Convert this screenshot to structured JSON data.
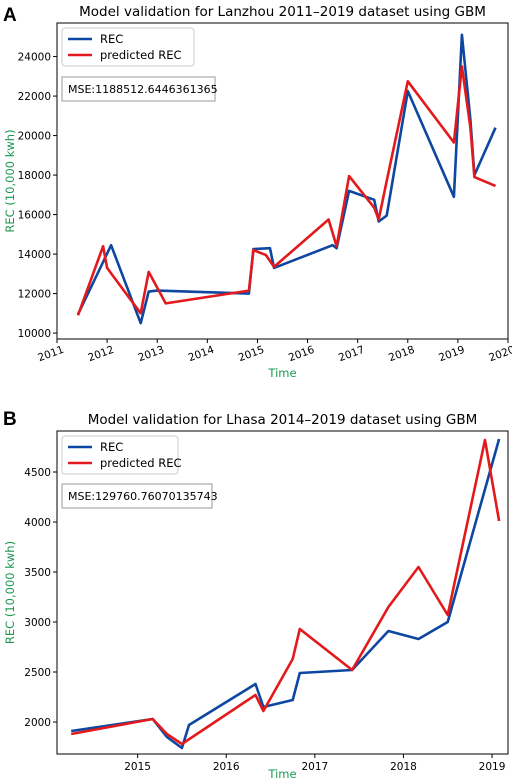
{
  "chart_data": [
    {
      "type": "line",
      "panel": "A",
      "title": "Model validation for Lanzhou 2011–2019 dataset using GBM",
      "xlabel": "Time",
      "ylabel": "REC (10,000  kwh)",
      "label_color": "#1a9850",
      "xlim": [
        2011.0,
        2020.0
      ],
      "ylim": [
        9700,
        25700
      ],
      "x_ticks": [
        2011,
        2012,
        2013,
        2014,
        2015,
        2016,
        2017,
        2018,
        2019,
        2020
      ],
      "x_tick_labels": [
        "2011",
        "2012",
        "2013",
        "2014",
        "2015",
        "2016",
        "2017",
        "2018",
        "2019",
        "2020"
      ],
      "y_ticks": [
        10000,
        12000,
        14000,
        16000,
        18000,
        20000,
        22000,
        24000
      ],
      "y_tick_labels": [
        "10000",
        "12000",
        "14000",
        "16000",
        "18000",
        "20000",
        "22000",
        "24000"
      ],
      "legend_position": "top-left",
      "annotation": "MSE:1188512.6446361365",
      "series": [
        {
          "name": "REC",
          "color": "#0d47a1",
          "x": [
            2011.42,
            2011.92,
            2012.08,
            2012.67,
            2012.83,
            2013.0,
            2014.83,
            2014.92,
            2015.25,
            2015.33,
            2016.5,
            2016.58,
            2016.83,
            2017.33,
            2017.42,
            2017.58,
            2018.0,
            2018.92,
            2019.08,
            2019.25,
            2019.33,
            2019.75
          ],
          "y": [
            10950,
            13600,
            14450,
            10500,
            12100,
            12150,
            12000,
            14250,
            14300,
            13300,
            14450,
            14300,
            17200,
            16750,
            15650,
            15950,
            22250,
            16900,
            25100,
            20800,
            18000,
            20400
          ]
        },
        {
          "name": "predicted REC",
          "color": "#e31a1c",
          "x": [
            2011.42,
            2011.92,
            2012.0,
            2012.67,
            2012.83,
            2013.17,
            2014.83,
            2014.92,
            2015.17,
            2015.33,
            2016.42,
            2016.58,
            2016.83,
            2017.33,
            2017.42,
            2017.58,
            2018.0,
            2018.92,
            2019.08,
            2019.25,
            2019.33,
            2019.75
          ],
          "y": [
            10900,
            14400,
            13300,
            11000,
            13100,
            11500,
            12150,
            14200,
            13950,
            13350,
            15750,
            14400,
            17950,
            16350,
            15750,
            17700,
            22750,
            19650,
            23500,
            20400,
            17900,
            17450
          ]
        }
      ]
    },
    {
      "type": "line",
      "panel": "B",
      "title": "Model validation for Lhasa 2014–2019 dataset using GBM",
      "xlabel": "Time",
      "ylabel": "REC (10,000  kwh)",
      "label_color": "#1a9850",
      "xlim": [
        2014.09,
        2019.18
      ],
      "ylim": [
        1680,
        4910
      ],
      "x_ticks": [
        2015,
        2016,
        2017,
        2018,
        2019
      ],
      "x_tick_labels": [
        "2015",
        "2016",
        "2017",
        "2018",
        "2019"
      ],
      "y_ticks": [
        2000,
        2500,
        3000,
        3500,
        4000,
        4500
      ],
      "y_tick_labels": [
        "2000",
        "2500",
        "3000",
        "3500",
        "4000",
        "4500"
      ],
      "legend_position": "top-left",
      "annotation": "MSE:129760.76070135743",
      "series": [
        {
          "name": "REC",
          "color": "#0d47a1",
          "x": [
            2014.25,
            2015.17,
            2015.33,
            2015.5,
            2015.58,
            2016.33,
            2016.42,
            2016.75,
            2016.83,
            2017.42,
            2017.83,
            2018.17,
            2018.5,
            2019.08
          ],
          "y": [
            1910,
            2030,
            1850,
            1740,
            1970,
            2380,
            2150,
            2220,
            2490,
            2520,
            2910,
            2830,
            3000,
            4830
          ]
        },
        {
          "name": "predicted REC",
          "color": "#e31a1c",
          "x": [
            2014.25,
            2015.17,
            2015.33,
            2015.5,
            2016.33,
            2016.42,
            2016.75,
            2016.83,
            2017.42,
            2017.83,
            2018.17,
            2018.5,
            2018.92,
            2019.08
          ],
          "y": [
            1880,
            2030,
            1880,
            1780,
            2270,
            2110,
            2630,
            2930,
            2520,
            3150,
            3550,
            3070,
            4820,
            4010
          ]
        }
      ]
    }
  ]
}
